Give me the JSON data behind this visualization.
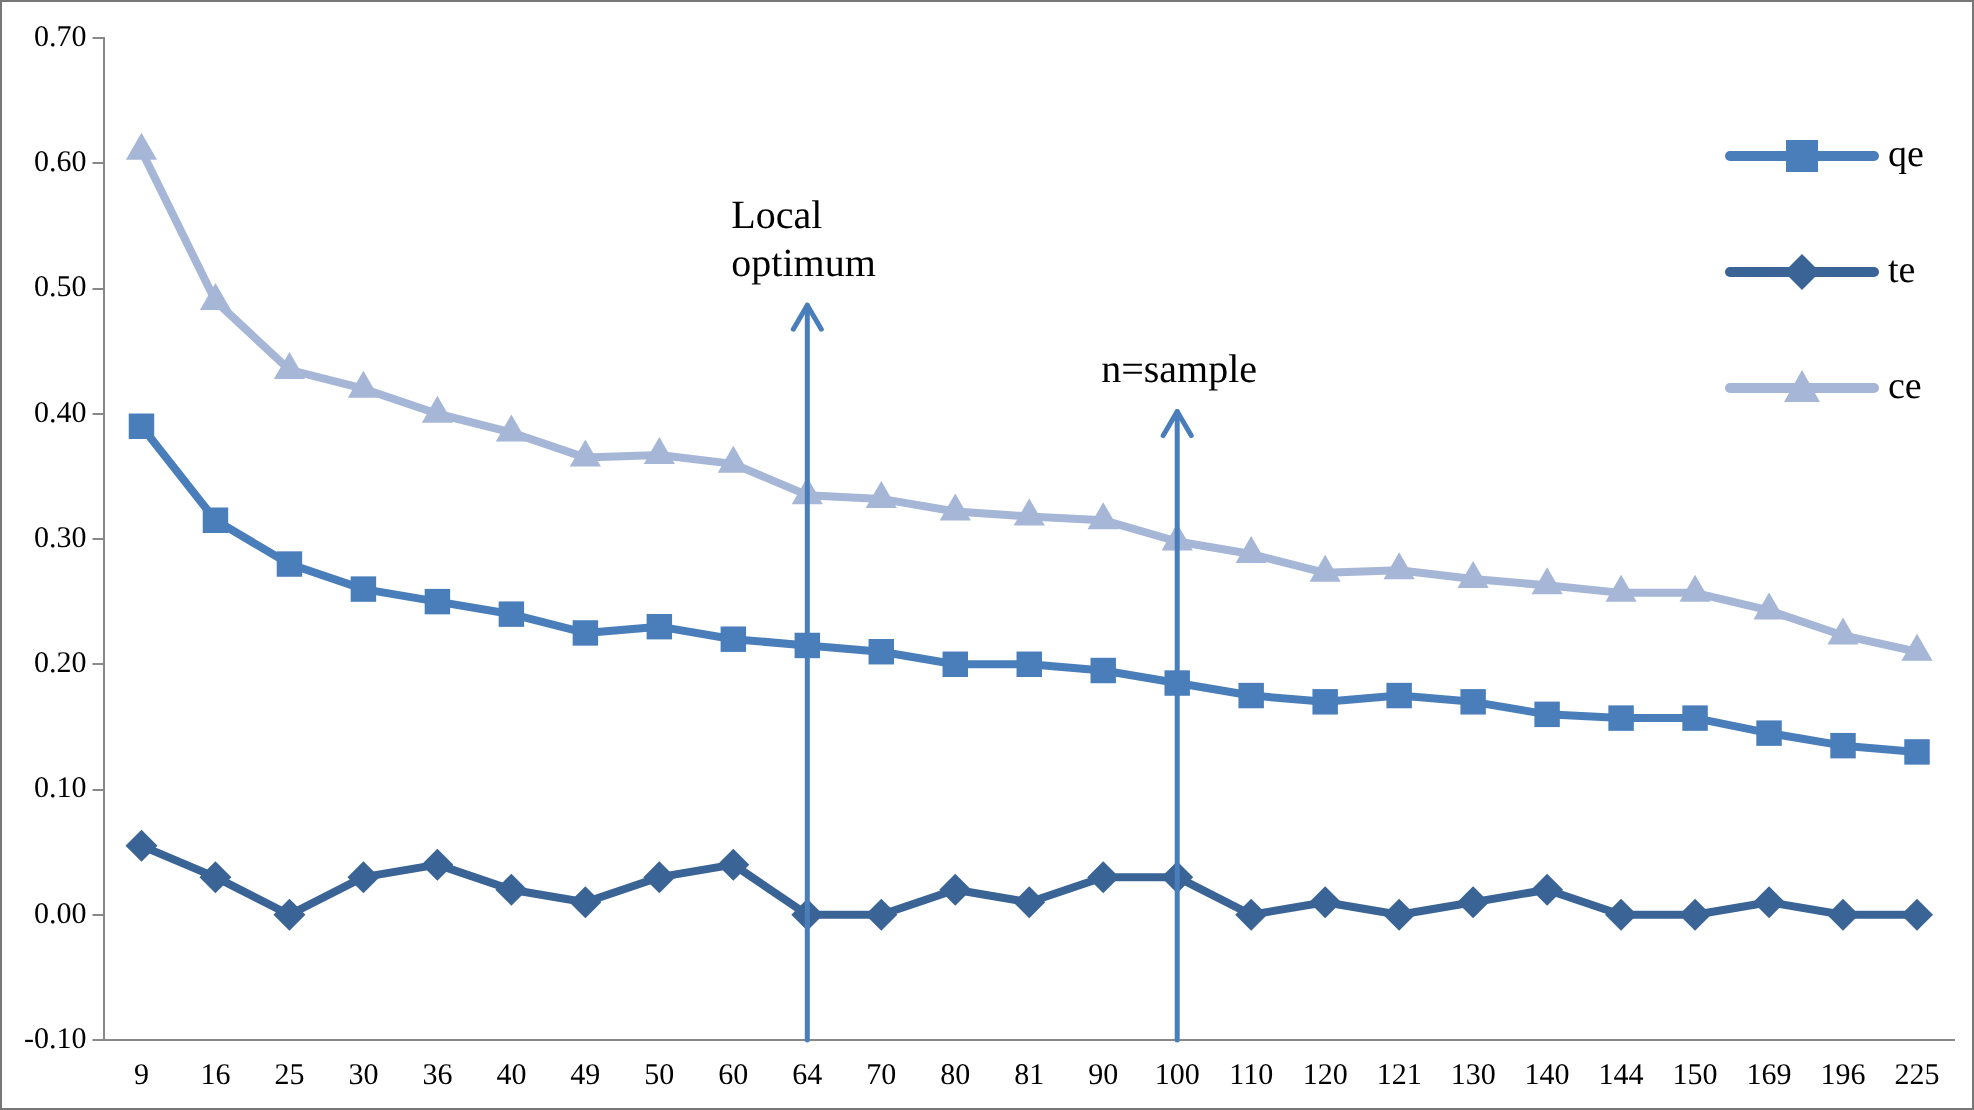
{
  "chart_data": {
    "type": "line",
    "categories": [
      "9",
      "16",
      "25",
      "30",
      "36",
      "40",
      "49",
      "50",
      "60",
      "64",
      "70",
      "80",
      "81",
      "90",
      "100",
      "110",
      "120",
      "121",
      "130",
      "140",
      "144",
      "150",
      "169",
      "196",
      "225"
    ],
    "series": [
      {
        "name": "qe",
        "color": "#4a7ebb",
        "marker": "square",
        "values": [
          0.39,
          0.315,
          0.28,
          0.26,
          0.25,
          0.24,
          0.225,
          0.23,
          0.22,
          0.215,
          0.21,
          0.2,
          0.2,
          0.195,
          0.185,
          0.175,
          0.17,
          0.175,
          0.17,
          0.16,
          0.157,
          0.157,
          0.145,
          0.135,
          0.13
        ]
      },
      {
        "name": "te",
        "color": "#3a6496",
        "marker": "diamond",
        "values": [
          0.055,
          0.03,
          0,
          0.03,
          0.04,
          0.02,
          0.01,
          0.03,
          0.04,
          0,
          0,
          0.02,
          0.01,
          0.03,
          0.03,
          0,
          0.01,
          0,
          0.01,
          0.02,
          0,
          0,
          0.01,
          0,
          0
        ]
      },
      {
        "name": "ce",
        "color": "#a5b6d6",
        "marker": "triangle",
        "values": [
          0.61,
          0.49,
          0.435,
          0.42,
          0.4,
          0.385,
          0.365,
          0.367,
          0.36,
          0.335,
          0.332,
          0.322,
          0.318,
          0.315,
          0.298,
          0.288,
          0.273,
          0.275,
          0.268,
          0.263,
          0.257,
          0.257,
          0.243,
          0.223,
          0.21
        ]
      }
    ],
    "ylim": [
      -0.1,
      0.7
    ],
    "yticks": [
      {
        "value": -0.1,
        "label": "-0.10"
      },
      {
        "value": 0,
        "label": "0.00"
      },
      {
        "value": 0.1,
        "label": "0.10"
      },
      {
        "value": 0.2,
        "label": "0.20"
      },
      {
        "value": 0.3,
        "label": "0.30"
      },
      {
        "value": 0.4,
        "label": "0.40"
      },
      {
        "value": 0.5,
        "label": "0.50"
      },
      {
        "value": 0.6,
        "label": "0.60"
      },
      {
        "value": 0.7,
        "label": "0.70"
      }
    ],
    "grid": false,
    "legend": "top right",
    "line_style": "solid",
    "ref_lines": [
      {
        "axis": "x",
        "value": "64",
        "label": "Local optimum",
        "color": "#4a7ebb"
      },
      {
        "axis": "x",
        "value": "100",
        "label": "n=sample",
        "color": "#4a7ebb"
      }
    ]
  }
}
